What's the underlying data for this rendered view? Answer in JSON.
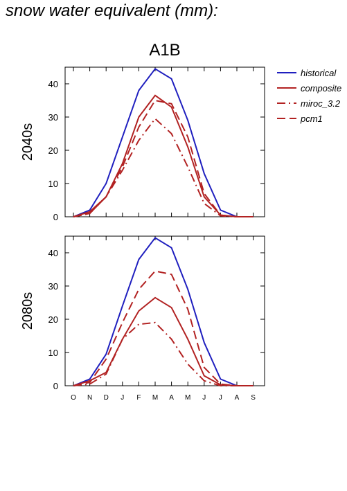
{
  "title": "snow water equivalent (mm):",
  "scenario": "A1B",
  "months": [
    "O",
    "N",
    "D",
    "J",
    "F",
    "M",
    "A",
    "M",
    "J",
    "J",
    "A",
    "S"
  ],
  "legend": [
    {
      "name": "historical",
      "color": "#1f1fbf",
      "dash": "solid"
    },
    {
      "name": "composite",
      "color": "#b22222",
      "dash": "solid"
    },
    {
      "name": "miroc_3.2",
      "color": "#b22222",
      "dash": "dashdot"
    },
    {
      "name": "pcm1",
      "color": "#b22222",
      "dash": "dash"
    }
  ],
  "chart_data": [
    {
      "type": "line",
      "panel_label": "2040s",
      "x": [
        "O",
        "N",
        "D",
        "J",
        "F",
        "M",
        "A",
        "M",
        "J",
        "J",
        "A",
        "S"
      ],
      "yticks": [
        0,
        10,
        20,
        30,
        40
      ],
      "ylim": [
        0,
        45
      ],
      "series": [
        {
          "name": "historical",
          "values": [
            0,
            2,
            10,
            24,
            38,
            44.5,
            41.5,
            29,
            13,
            2,
            0,
            0
          ]
        },
        {
          "name": "composite",
          "values": [
            0,
            1.5,
            6,
            16,
            30,
            36.5,
            33,
            21,
            6,
            0.5,
            0,
            0
          ]
        },
        {
          "name": "miroc_3.2",
          "values": [
            0,
            1,
            6,
            14,
            23,
            29.5,
            25,
            15,
            4,
            0.3,
            0,
            0
          ]
        },
        {
          "name": "pcm1",
          "values": [
            0,
            1,
            6,
            15,
            27,
            35,
            34,
            24,
            7,
            0.5,
            0,
            0
          ]
        }
      ]
    },
    {
      "type": "line",
      "panel_label": "2080s",
      "x": [
        "O",
        "N",
        "D",
        "J",
        "F",
        "M",
        "A",
        "M",
        "J",
        "J",
        "A",
        "S"
      ],
      "yticks": [
        0,
        10,
        20,
        30,
        40
      ],
      "ylim": [
        0,
        45
      ],
      "series": [
        {
          "name": "historical",
          "values": [
            0,
            2,
            9.5,
            24,
            38,
            44.5,
            41.5,
            29,
            13,
            2,
            0,
            0
          ]
        },
        {
          "name": "composite",
          "values": [
            0,
            1.5,
            4,
            14,
            22.5,
            26.5,
            23.5,
            14,
            3,
            0.3,
            0,
            0
          ]
        },
        {
          "name": "miroc_3.2",
          "values": [
            0,
            0.5,
            3.5,
            14,
            18.5,
            19,
            14,
            6.5,
            1.5,
            0,
            0,
            0
          ]
        },
        {
          "name": "pcm1",
          "values": [
            0,
            1,
            8,
            19,
            29,
            34.5,
            33.5,
            23,
            5.5,
            0.5,
            0,
            0
          ]
        }
      ]
    }
  ]
}
